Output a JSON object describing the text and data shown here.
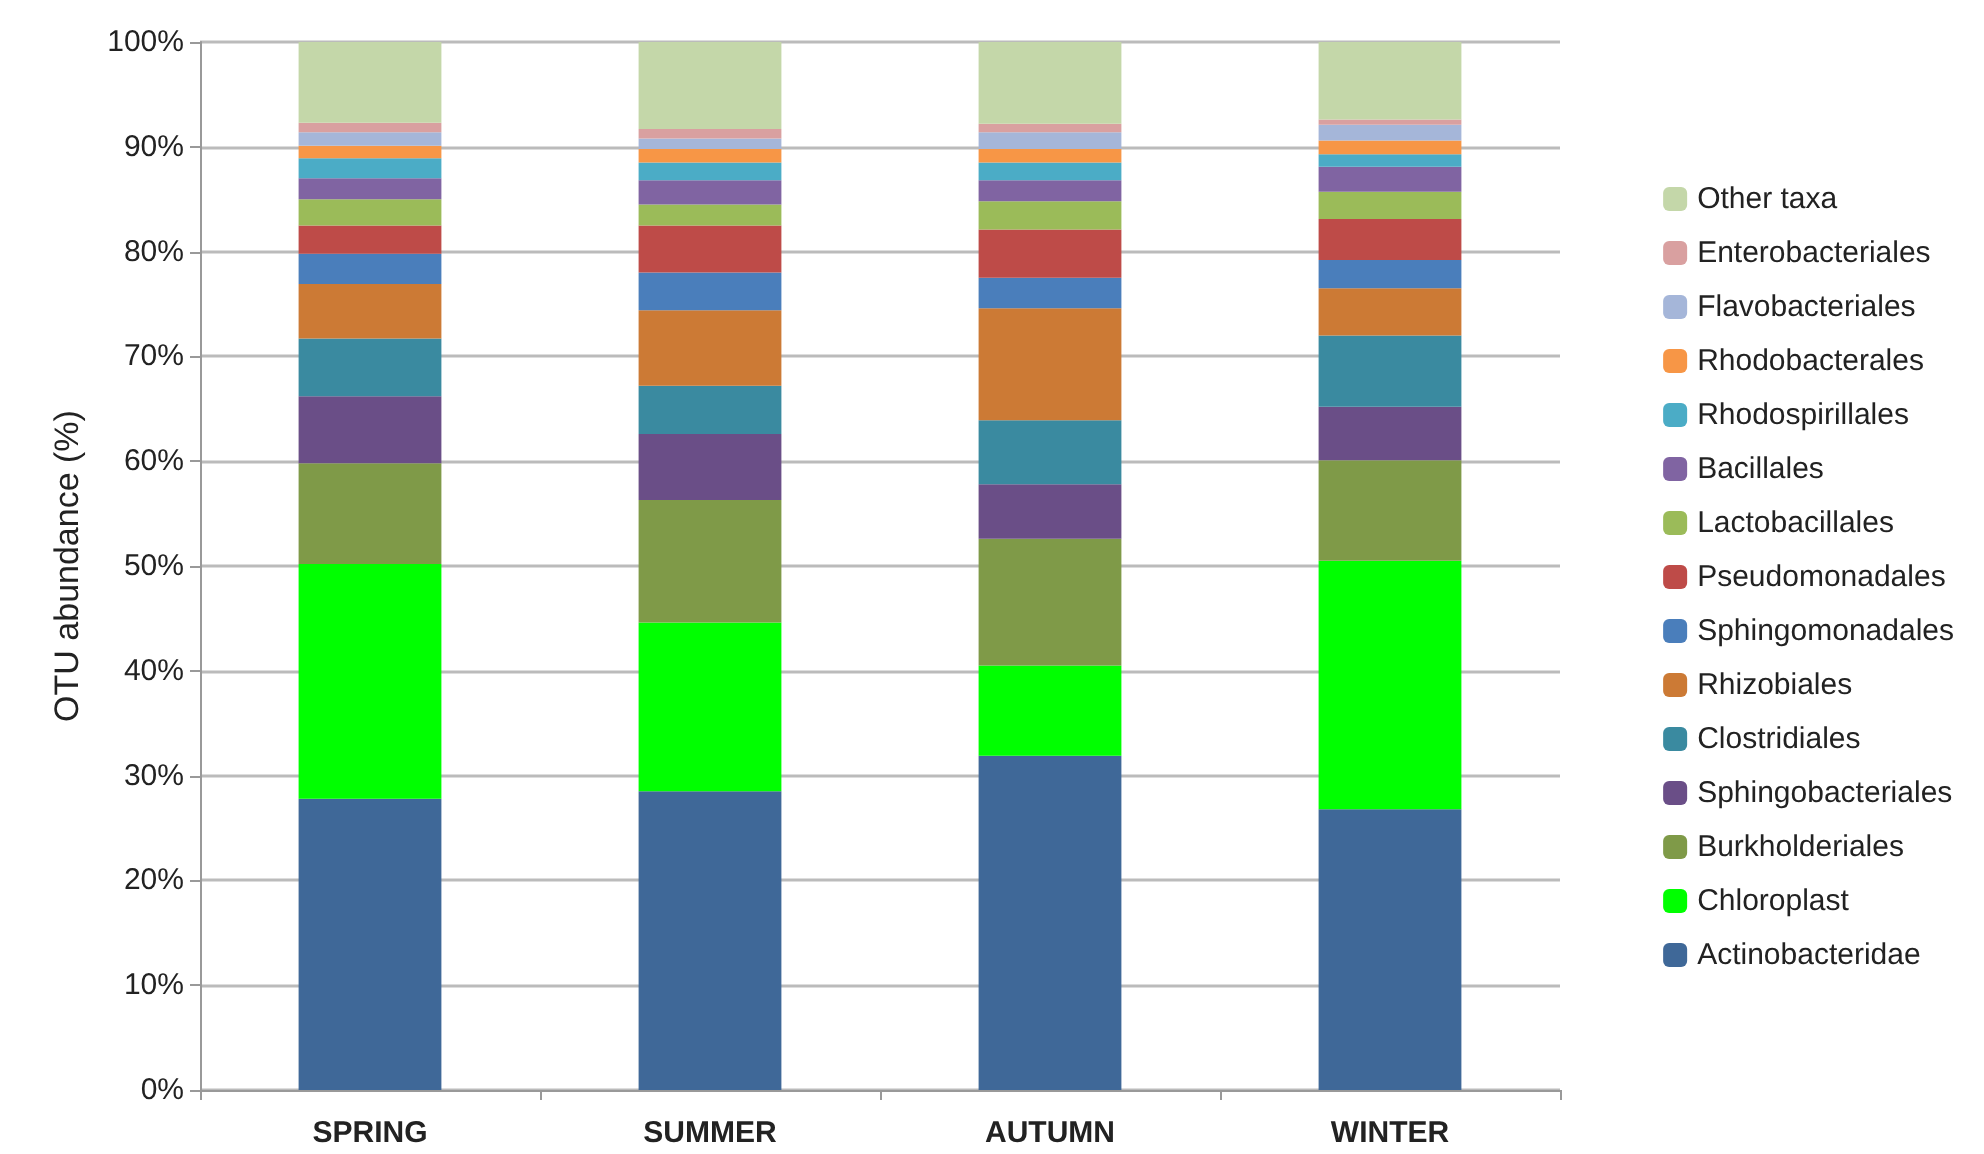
{
  "chart_data": {
    "type": "bar",
    "stacked": true,
    "ylabel": "OTU abundance (%)",
    "categories": [
      "SPRING",
      "SUMMER",
      "AUTUMN",
      "WINTER"
    ],
    "ylim": [
      0,
      100
    ],
    "yticks": [
      {
        "value": 0,
        "label": "0%"
      },
      {
        "value": 10,
        "label": "10%"
      },
      {
        "value": 20,
        "label": "20%"
      },
      {
        "value": 30,
        "label": "30%"
      },
      {
        "value": 40,
        "label": "40%"
      },
      {
        "value": 50,
        "label": "50%"
      },
      {
        "value": 60,
        "label": "60%"
      },
      {
        "value": 70,
        "label": "70%"
      },
      {
        "value": 80,
        "label": "80%"
      },
      {
        "value": 90,
        "label": "90%"
      },
      {
        "value": 100,
        "label": "100%"
      }
    ],
    "grid": "y",
    "legend": "right",
    "series": [
      {
        "name": "Actinobacteridae",
        "color": "#3f6898",
        "values": [
          27.8,
          28.5,
          31.9,
          26.8
        ]
      },
      {
        "name": "Chloroplast",
        "color": "#00ff00",
        "values": [
          22.4,
          16.1,
          8.6,
          23.7
        ]
      },
      {
        "name": "Burkholderiales",
        "color": "#7f9a48",
        "values": [
          9.6,
          11.7,
          12.1,
          9.6
        ]
      },
      {
        "name": "Sphingobacteriales",
        "color": "#6a4e87",
        "values": [
          6.4,
          6.3,
          5.2,
          5.1
        ]
      },
      {
        "name": "Clostridiales",
        "color": "#3a8aa0",
        "values": [
          5.5,
          4.6,
          6.1,
          6.8
        ]
      },
      {
        "name": "Rhizobiales",
        "color": "#cc7a35",
        "values": [
          5.2,
          7.2,
          10.7,
          4.5
        ]
      },
      {
        "name": "Sphingomonadales",
        "color": "#4a7ebb",
        "values": [
          2.9,
          3.6,
          2.9,
          2.7
        ]
      },
      {
        "name": "Pseudomonadales",
        "color": "#be4b48",
        "values": [
          2.7,
          4.5,
          4.6,
          3.9
        ]
      },
      {
        "name": "Lactobacillales",
        "color": "#9bbb59",
        "values": [
          2.5,
          2.0,
          2.7,
          2.6
        ]
      },
      {
        "name": "Bacillales",
        "color": "#8064a2",
        "values": [
          2.0,
          2.3,
          2.0,
          2.4
        ]
      },
      {
        "name": "Rhodospirillales",
        "color": "#4bacc6",
        "values": [
          1.9,
          1.7,
          1.7,
          1.2
        ]
      },
      {
        "name": "Rhodobacterales",
        "color": "#f79646",
        "values": [
          1.2,
          1.3,
          1.3,
          1.3
        ]
      },
      {
        "name": "Flavobacteriales",
        "color": "#a5b6d9",
        "values": [
          1.3,
          1.0,
          1.6,
          1.5
        ]
      },
      {
        "name": "Enterobacteriales",
        "color": "#d9a0a0",
        "values": [
          0.9,
          0.9,
          0.8,
          0.5
        ]
      },
      {
        "name": "Other taxa",
        "color": "#c4d7a9",
        "values": [
          7.7,
          8.3,
          7.8,
          7.4
        ]
      }
    ]
  }
}
